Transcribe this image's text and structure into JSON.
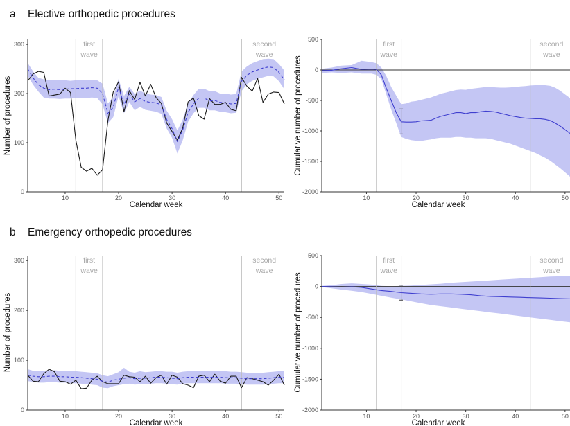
{
  "colors": {
    "band": "#c4c6f4",
    "expected": "#3f3fcf",
    "observed": "#1a1a1a",
    "wave_line": "#bdbdbd",
    "wave_text": "#a8a8a8"
  },
  "panels": [
    {
      "letter": "a",
      "title": "Elective orthopedic procedures"
    },
    {
      "letter": "b",
      "title": "Emergency orthopedic procedures"
    }
  ],
  "wave_labels": {
    "first": [
      "first",
      "wave"
    ],
    "second": [
      "second",
      "wave"
    ]
  },
  "chart_data": [
    {
      "id": "elective-weekly",
      "type": "line",
      "xlabel": "Calendar week",
      "ylabel": "Number of procedures",
      "xlim": [
        3,
        51
      ],
      "ylim": [
        0,
        310
      ],
      "xticks": [
        10,
        20,
        30,
        40,
        50
      ],
      "yticks": [
        0,
        100,
        200,
        300
      ],
      "wave_weeks": [
        12,
        17,
        43
      ],
      "x": [
        3,
        4,
        5,
        6,
        7,
        8,
        9,
        10,
        11,
        12,
        13,
        14,
        15,
        16,
        17,
        18,
        19,
        20,
        21,
        22,
        23,
        24,
        25,
        26,
        27,
        28,
        29,
        30,
        31,
        32,
        33,
        34,
        35,
        36,
        37,
        38,
        39,
        40,
        41,
        42,
        43,
        44,
        45,
        46,
        47,
        48,
        49,
        50,
        51
      ],
      "series": [
        {
          "role": "observed",
          "style": "solid",
          "values": [
            226,
            240,
            245,
            243,
            195,
            197,
            199,
            211,
            202,
            105,
            50,
            42,
            48,
            34,
            45,
            145,
            203,
            224,
            163,
            206,
            188,
            223,
            195,
            219,
            192,
            180,
            140,
            123,
            105,
            130,
            183,
            191,
            155,
            148,
            190,
            178,
            178,
            182,
            168,
            165,
            233,
            215,
            205,
            231,
            182,
            199,
            203,
            202,
            179
          ]
        },
        {
          "role": "expected",
          "style": "dashed",
          "values": [
            250,
            232,
            218,
            211,
            208,
            209,
            208,
            209,
            210,
            210,
            211,
            211,
            212,
            211,
            200,
            160,
            172,
            213,
            178,
            199,
            183,
            190,
            184,
            182,
            181,
            177,
            147,
            129,
            102,
            126,
            162,
            179,
            191,
            191,
            185,
            186,
            182,
            181,
            179,
            180,
            225,
            237,
            244,
            248,
            252,
            254,
            253,
            243,
            228
          ]
        },
        {
          "role": "band_upper",
          "values": [
            262,
            245,
            232,
            229,
            227,
            228,
            227,
            227,
            226,
            227,
            227,
            227,
            228,
            227,
            220,
            180,
            192,
            230,
            195,
            214,
            199,
            206,
            200,
            198,
            197,
            193,
            165,
            148,
            125,
            147,
            180,
            197,
            210,
            210,
            205,
            205,
            200,
            200,
            198,
            199,
            245,
            255,
            262,
            266,
            270,
            271,
            270,
            260,
            247
          ]
        },
        {
          "role": "band_lower",
          "values": [
            236,
            218,
            204,
            192,
            190,
            190,
            189,
            190,
            190,
            191,
            191,
            191,
            192,
            191,
            178,
            140,
            152,
            195,
            160,
            183,
            166,
            173,
            167,
            165,
            163,
            159,
            129,
            110,
            78,
            105,
            143,
            160,
            171,
            171,
            166,
            166,
            163,
            162,
            160,
            161,
            205,
            219,
            226,
            230,
            233,
            236,
            235,
            225,
            209
          ]
        }
      ]
    },
    {
      "id": "elective-cumulative",
      "type": "line",
      "xlabel": "Calendar week",
      "ylabel": "Cumulative number of procedures",
      "xlim": [
        1,
        51
      ],
      "ylim": [
        -2000,
        500
      ],
      "xticks": [
        10,
        20,
        30,
        40,
        50
      ],
      "yticks": [
        -2000,
        -1500,
        -1000,
        -500,
        0,
        500
      ],
      "wave_weeks": [
        12,
        17,
        43
      ],
      "zero_line": true,
      "error_bar": {
        "x": 17,
        "low": -1050,
        "high": -640
      },
      "x": [
        1,
        3,
        5,
        7,
        9,
        11,
        12,
        13,
        14,
        15,
        16,
        17,
        18,
        19,
        20,
        21,
        22,
        23,
        24,
        25,
        26,
        27,
        28,
        29,
        30,
        31,
        32,
        33,
        34,
        35,
        36,
        37,
        38,
        39,
        40,
        41,
        42,
        43,
        44,
        45,
        46,
        47,
        48,
        49,
        50,
        51
      ],
      "series": [
        {
          "role": "cumulative",
          "style": "solid",
          "values": [
            -10,
            -5,
            20,
            40,
            10,
            15,
            10,
            -80,
            -300,
            -500,
            -700,
            -850,
            -855,
            -855,
            -850,
            -835,
            -830,
            -825,
            -790,
            -760,
            -740,
            -720,
            -700,
            -700,
            -715,
            -700,
            -700,
            -685,
            -675,
            -680,
            -690,
            -710,
            -730,
            -750,
            -765,
            -780,
            -790,
            -795,
            -800,
            -800,
            -810,
            -830,
            -870,
            -920,
            -980,
            -1040
          ]
        },
        {
          "role": "band_upper",
          "values": [
            20,
            40,
            70,
            80,
            150,
            130,
            110,
            40,
            -100,
            -280,
            -420,
            -560,
            -550,
            -520,
            -510,
            -490,
            -470,
            -450,
            -420,
            -390,
            -370,
            -350,
            -330,
            -320,
            -325,
            -310,
            -300,
            -290,
            -280,
            -280,
            -285,
            -290,
            -290,
            -285,
            -280,
            -270,
            -265,
            -255,
            -250,
            -245,
            -250,
            -260,
            -290,
            -340,
            -400,
            -460
          ]
        },
        {
          "role": "band_lower",
          "values": [
            -50,
            -40,
            -50,
            -40,
            -60,
            -60,
            -80,
            -150,
            -400,
            -650,
            -870,
            -1100,
            -1130,
            -1150,
            -1160,
            -1165,
            -1150,
            -1140,
            -1120,
            -1110,
            -1110,
            -1110,
            -1100,
            -1100,
            -1110,
            -1110,
            -1120,
            -1120,
            -1120,
            -1130,
            -1150,
            -1170,
            -1190,
            -1210,
            -1240,
            -1270,
            -1300,
            -1330,
            -1360,
            -1400,
            -1440,
            -1490,
            -1550,
            -1610,
            -1680,
            -1750
          ]
        }
      ]
    },
    {
      "id": "emergency-weekly",
      "type": "line",
      "xlabel": "Calendar week",
      "ylabel": "Number of procedures",
      "xlim": [
        3,
        51
      ],
      "ylim": [
        0,
        310
      ],
      "xticks": [
        10,
        20,
        30,
        40,
        50
      ],
      "yticks": [
        0,
        100,
        200,
        300
      ],
      "wave_weeks": [
        12,
        17,
        43
      ],
      "x": [
        3,
        4,
        5,
        6,
        7,
        8,
        9,
        10,
        11,
        12,
        13,
        14,
        15,
        16,
        17,
        18,
        19,
        20,
        21,
        22,
        23,
        24,
        25,
        26,
        27,
        28,
        29,
        30,
        31,
        32,
        33,
        34,
        35,
        36,
        37,
        38,
        39,
        40,
        41,
        42,
        43,
        44,
        45,
        46,
        47,
        48,
        49,
        50,
        51
      ],
      "series": [
        {
          "role": "observed",
          "style": "solid",
          "values": [
            70,
            58,
            57,
            73,
            82,
            77,
            58,
            57,
            52,
            60,
            43,
            44,
            60,
            68,
            57,
            53,
            53,
            53,
            70,
            67,
            66,
            57,
            68,
            54,
            65,
            70,
            52,
            70,
            66,
            53,
            50,
            45,
            68,
            70,
            57,
            72,
            58,
            54,
            68,
            68,
            45,
            65,
            63,
            60,
            57,
            50,
            60,
            72,
            50
          ]
        },
        {
          "role": "expected",
          "style": "dashed",
          "values": [
            70,
            68,
            67,
            67,
            68,
            68,
            67,
            67,
            66,
            66,
            65,
            64,
            63,
            62,
            58,
            56,
            60,
            62,
            64,
            65,
            63,
            64,
            64,
            65,
            66,
            66,
            65,
            64,
            63,
            65,
            66,
            66,
            66,
            66,
            66,
            66,
            66,
            65,
            65,
            65,
            64,
            63,
            63,
            63,
            63,
            64,
            65,
            66,
            66
          ]
        },
        {
          "role": "band_upper",
          "values": [
            82,
            79,
            79,
            79,
            80,
            80,
            79,
            79,
            78,
            78,
            77,
            76,
            75,
            74,
            70,
            68,
            72,
            76,
            85,
            77,
            75,
            78,
            76,
            77,
            78,
            78,
            77,
            77,
            75,
            77,
            78,
            78,
            78,
            78,
            78,
            78,
            78,
            78,
            77,
            77,
            76,
            75,
            75,
            75,
            75,
            76,
            77,
            78,
            78
          ]
        },
        {
          "role": "band_lower",
          "values": [
            58,
            57,
            55,
            55,
            56,
            56,
            55,
            55,
            54,
            54,
            53,
            52,
            51,
            50,
            45,
            44,
            48,
            50,
            52,
            53,
            51,
            52,
            52,
            53,
            54,
            54,
            53,
            52,
            51,
            53,
            54,
            54,
            54,
            54,
            54,
            54,
            54,
            53,
            53,
            53,
            52,
            51,
            51,
            51,
            51,
            52,
            53,
            54,
            54
          ]
        }
      ]
    },
    {
      "id": "emergency-cumulative",
      "type": "line",
      "xlabel": "Calendar week",
      "ylabel": "Cumulative number of procedures",
      "xlim": [
        1,
        51
      ],
      "ylim": [
        -2000,
        500
      ],
      "xticks": [
        10,
        20,
        30,
        40,
        50
      ],
      "yticks": [
        -2000,
        -1500,
        -1000,
        -500,
        0,
        500
      ],
      "wave_weeks": [
        12,
        17,
        43
      ],
      "zero_line": true,
      "error_bar": {
        "x": 17,
        "low": -220,
        "high": 20
      },
      "x": [
        1,
        3,
        5,
        7,
        9,
        11,
        13,
        15,
        17,
        19,
        21,
        23,
        25,
        27,
        29,
        31,
        33,
        35,
        37,
        39,
        41,
        43,
        45,
        47,
        49,
        51
      ],
      "series": [
        {
          "role": "cumulative",
          "style": "solid",
          "values": [
            0,
            -5,
            -10,
            -5,
            -15,
            -40,
            -65,
            -80,
            -100,
            -110,
            -120,
            -125,
            -120,
            -120,
            -125,
            -135,
            -150,
            -160,
            -165,
            -170,
            -175,
            -180,
            -185,
            -190,
            -195,
            -200
          ]
        },
        {
          "role": "band_upper",
          "values": [
            10,
            20,
            40,
            50,
            40,
            30,
            10,
            5,
            10,
            15,
            25,
            35,
            45,
            60,
            70,
            80,
            90,
            100,
            110,
            120,
            130,
            140,
            150,
            160,
            165,
            170
          ]
        },
        {
          "role": "band_lower",
          "values": [
            -10,
            -30,
            -50,
            -70,
            -90,
            -120,
            -150,
            -180,
            -210,
            -240,
            -270,
            -300,
            -320,
            -340,
            -360,
            -380,
            -400,
            -420,
            -440,
            -460,
            -480,
            -500,
            -520,
            -540,
            -560,
            -580
          ]
        }
      ]
    }
  ]
}
